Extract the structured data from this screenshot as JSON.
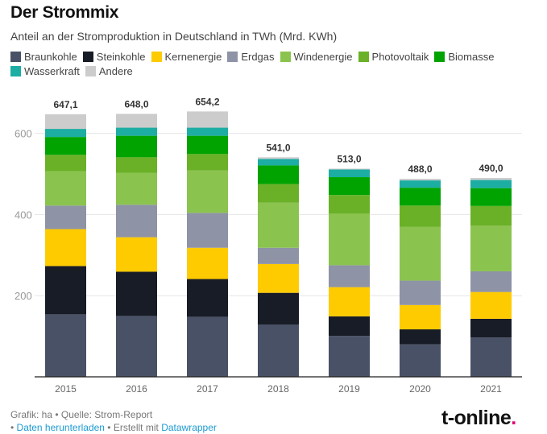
{
  "title": "Der Strommix",
  "subtitle": "Anteil an der Stromproduktion in Deutschland in TWh (Mrd. KWh)",
  "footer": {
    "line1": "Grafik: ha • Quelle: Strom-Report",
    "bullet": "• ",
    "download_link": "Daten herunterladen",
    "middle": " • Erstellt mit ",
    "datawrapper_link": "Datawrapper"
  },
  "logo": {
    "text": "t-online",
    "dot": "."
  },
  "chart_data": {
    "type": "bar",
    "stacked": true,
    "title": "Der Strommix",
    "subtitle": "Anteil an der Stromproduktion in Deutschland in TWh (Mrd. KWh)",
    "xlabel": "",
    "ylabel": "",
    "ylim": [
      0,
      660
    ],
    "yticks": [
      200,
      400,
      600
    ],
    "grid": true,
    "legend_position": "top",
    "categories": [
      "2015",
      "2016",
      "2017",
      "2018",
      "2019",
      "2020",
      "2021"
    ],
    "totals": [
      "647,1",
      "648,0",
      "654,2",
      "541,0",
      "513,0",
      "488,0",
      "490,0"
    ],
    "series": [
      {
        "name": "Braunkohle",
        "color": "#495166",
        "values": [
          154,
          150,
          148,
          129,
          101,
          80,
          97
        ]
      },
      {
        "name": "Steinkohle",
        "color": "#181c26",
        "values": [
          119,
          109,
          93,
          78,
          48,
          37,
          46
        ]
      },
      {
        "name": "Kernenergie",
        "color": "#fecb00",
        "values": [
          91,
          85,
          77,
          71,
          72,
          60,
          66
        ]
      },
      {
        "name": "Erdgas",
        "color": "#8e93a6",
        "values": [
          58,
          80,
          86,
          40,
          54,
          60,
          51
        ]
      },
      {
        "name": "Windenergie",
        "color": "#8bc34f",
        "values": [
          85,
          79,
          105,
          111,
          127,
          133,
          113
        ]
      },
      {
        "name": "Photovoltaik",
        "color": "#6ab127",
        "values": [
          40,
          38,
          40,
          46,
          46,
          52,
          48
        ]
      },
      {
        "name": "Biomasse",
        "color": "#00a300",
        "values": [
          44,
          53,
          45,
          46,
          44,
          44,
          44
        ]
      },
      {
        "name": "Wasserkraft",
        "color": "#1cada3",
        "values": [
          20,
          20,
          20,
          16,
          19,
          18,
          20
        ]
      },
      {
        "name": "Andere",
        "color": "#cccccc",
        "values": [
          36,
          34,
          40,
          4,
          2,
          4,
          5
        ]
      }
    ]
  }
}
